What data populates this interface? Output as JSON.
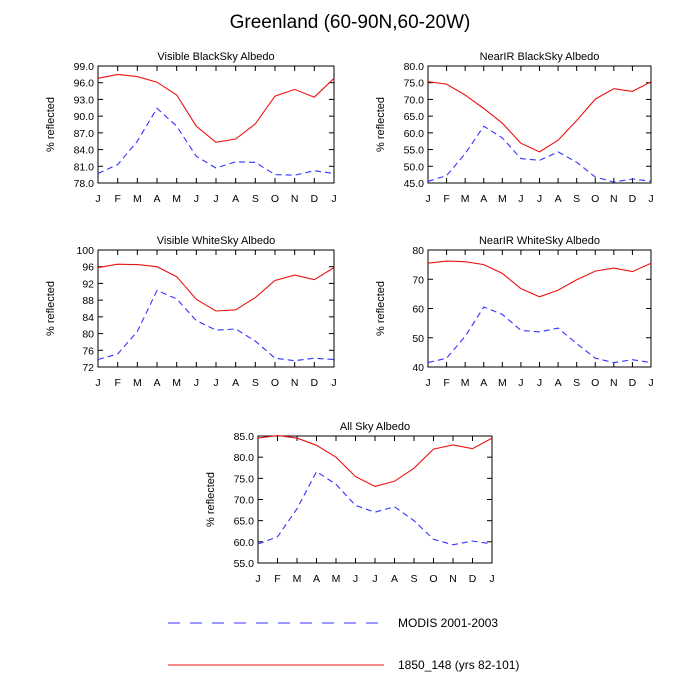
{
  "figure": {
    "title": "Greenland (60-90N,60-20W)"
  },
  "legend": {
    "position": "bottom-center",
    "entries": [
      {
        "label": "MODIS 2001-2003",
        "color": "#3333ff",
        "dash": "dashed"
      },
      {
        "label": "1850_148 (yrs 82-101)",
        "color": "#ee1111",
        "dash": "solid"
      }
    ]
  },
  "chart_data": [
    {
      "type": "line",
      "title": "Visible BlackSky Albedo",
      "ylabel": "% reflected",
      "ylim": [
        78,
        99
      ],
      "yticks": [
        "78.0",
        "81.0",
        "84.0",
        "87.0",
        "90.0",
        "93.0",
        "96.0",
        "99.0"
      ],
      "categories": [
        "J",
        "F",
        "M",
        "A",
        "M",
        "J",
        "J",
        "A",
        "S",
        "O",
        "N",
        "D",
        "J"
      ],
      "series": [
        {
          "name": "MODIS 2001-2003",
          "color": "#3333ff",
          "dash": "dashed",
          "values": [
            79.7,
            81.3,
            85.5,
            91.4,
            88.2,
            82.8,
            80.7,
            81.8,
            81.7,
            79.5,
            79.4,
            80.2,
            79.7
          ]
        },
        {
          "name": "1850_148 (yrs 82-101)",
          "color": "#ee1111",
          "dash": "solid",
          "values": [
            96.8,
            97.5,
            97.1,
            96.1,
            93.8,
            88.2,
            85.3,
            85.9,
            88.6,
            93.6,
            94.8,
            93.4,
            96.8
          ]
        }
      ]
    },
    {
      "type": "line",
      "title": "NearIR BlackSky Albedo",
      "ylabel": "% reflected",
      "ylim": [
        45,
        80
      ],
      "yticks": [
        "45.0",
        "50.0",
        "55.0",
        "60.0",
        "65.0",
        "70.0",
        "75.0",
        "80.0"
      ],
      "categories": [
        "J",
        "F",
        "M",
        "A",
        "M",
        "J",
        "J",
        "A",
        "S",
        "O",
        "N",
        "D",
        "J"
      ],
      "series": [
        {
          "name": "MODIS 2001-2003",
          "color": "#3333ff",
          "dash": "dashed",
          "values": [
            45.5,
            47.2,
            53.8,
            62.0,
            58.5,
            52.3,
            51.8,
            54.3,
            51.2,
            46.8,
            45.3,
            46.2,
            45.5
          ]
        },
        {
          "name": "1850_148 (yrs 82-101)",
          "color": "#ee1111",
          "dash": "solid",
          "values": [
            75.3,
            74.6,
            71.3,
            67.3,
            62.9,
            56.9,
            54.3,
            57.8,
            63.7,
            70.1,
            73.2,
            72.4,
            75.3
          ]
        }
      ]
    },
    {
      "type": "line",
      "title": "Visible WhiteSky Albedo",
      "ylabel": "% reflected",
      "ylim": [
        72,
        100
      ],
      "yticks": [
        "72",
        "76",
        "80",
        "84",
        "88",
        "92",
        "96",
        "100"
      ],
      "categories": [
        "J",
        "F",
        "M",
        "A",
        "M",
        "J",
        "J",
        "A",
        "S",
        "O",
        "N",
        "D",
        "J"
      ],
      "series": [
        {
          "name": "MODIS 2001-2003",
          "color": "#3333ff",
          "dash": "dashed",
          "values": [
            73.8,
            75.1,
            80.5,
            90.3,
            88.3,
            83.1,
            80.8,
            81.1,
            78.2,
            74.1,
            73.5,
            74.1,
            73.8
          ]
        },
        {
          "name": "1850_148 (yrs 82-101)",
          "color": "#ee1111",
          "dash": "solid",
          "values": [
            95.8,
            96.6,
            96.5,
            96.0,
            93.6,
            88.2,
            85.4,
            85.7,
            88.6,
            92.7,
            94.0,
            92.9,
            95.8
          ]
        }
      ]
    },
    {
      "type": "line",
      "title": "NearIR WhiteSky Albedo",
      "ylabel": "% reflected",
      "ylim": [
        40,
        80
      ],
      "yticks": [
        "40",
        "50",
        "60",
        "70",
        "80"
      ],
      "categories": [
        "J",
        "F",
        "M",
        "A",
        "M",
        "J",
        "J",
        "A",
        "S",
        "O",
        "N",
        "D",
        "J"
      ],
      "series": [
        {
          "name": "MODIS 2001-2003",
          "color": "#3333ff",
          "dash": "dashed",
          "values": [
            41.5,
            43.0,
            50.5,
            60.5,
            58.0,
            52.5,
            52.0,
            53.3,
            48.0,
            43.0,
            41.5,
            42.5,
            41.5
          ]
        },
        {
          "name": "1850_148 (yrs 82-101)",
          "color": "#ee1111",
          "dash": "solid",
          "values": [
            75.5,
            76.2,
            76.0,
            75.0,
            72.0,
            66.8,
            64.0,
            66.3,
            69.8,
            72.8,
            73.8,
            72.6,
            75.5
          ]
        }
      ]
    },
    {
      "type": "line",
      "title": "All Sky Albedo",
      "ylabel": "% reflected",
      "ylim": [
        55,
        85
      ],
      "yticks": [
        "55.0",
        "60.0",
        "65.0",
        "70.0",
        "75.0",
        "80.0",
        "85.0"
      ],
      "categories": [
        "J",
        "F",
        "M",
        "A",
        "M",
        "J",
        "J",
        "A",
        "S",
        "O",
        "N",
        "D",
        "J"
      ],
      "series": [
        {
          "name": "MODIS 2001-2003",
          "color": "#3333ff",
          "dash": "dashed",
          "values": [
            59.5,
            61.2,
            67.8,
            76.6,
            73.6,
            68.6,
            67.0,
            68.3,
            65.0,
            60.6,
            59.3,
            60.2,
            59.5
          ]
        },
        {
          "name": "1850_148 (yrs 82-101)",
          "color": "#ee1111",
          "dash": "solid",
          "values": [
            84.5,
            85.1,
            84.5,
            82.8,
            80.0,
            75.4,
            73.1,
            74.3,
            77.4,
            81.9,
            82.9,
            82.0,
            84.5
          ]
        }
      ]
    }
  ]
}
